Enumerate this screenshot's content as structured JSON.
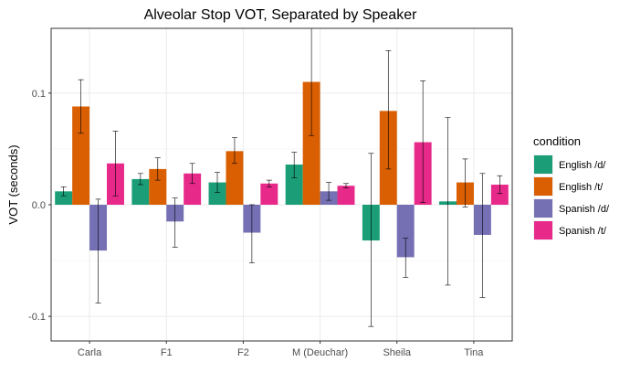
{
  "chart_data": {
    "type": "bar",
    "title": "Alveolar Stop VOT, Separated by Speaker",
    "xlabel": "",
    "ylabel": "VOT (seconds)",
    "ylim": [
      -0.122,
      0.158
    ],
    "yticks": [
      -0.1,
      0.0,
      0.1
    ],
    "ytick_labels": [
      "-0.1",
      "0.0",
      "0.1"
    ],
    "grid": true,
    "legend_title": "condition",
    "legend_position": "right",
    "categories": [
      "Carla",
      "F1",
      "F2",
      "M (Deuchar)",
      "Sheila",
      "Tina"
    ],
    "series": [
      {
        "name": "English /d/",
        "color": "#1B9E77",
        "values": [
          0.012,
          0.023,
          0.02,
          0.036,
          -0.032,
          0.003
        ],
        "err_low": [
          0.008,
          0.018,
          0.011,
          0.024,
          -0.109,
          -0.072
        ],
        "err_high": [
          0.016,
          0.028,
          0.029,
          0.047,
          0.046,
          0.078
        ]
      },
      {
        "name": "English /t/",
        "color": "#D95F02",
        "values": [
          0.088,
          0.032,
          0.048,
          0.11,
          0.084,
          0.02
        ],
        "err_low": [
          0.064,
          0.022,
          0.037,
          0.062,
          0.032,
          -0.002
        ],
        "err_high": [
          0.112,
          0.042,
          0.06,
          0.158,
          0.138,
          0.041
        ]
      },
      {
        "name": "Spanish /d/",
        "color": "#7570B3",
        "values": [
          -0.041,
          -0.015,
          -0.025,
          0.012,
          -0.047,
          -0.027
        ],
        "err_low": [
          -0.088,
          -0.038,
          -0.052,
          0.004,
          -0.065,
          -0.083
        ],
        "err_high": [
          0.005,
          0.006,
          0.0,
          0.02,
          -0.03,
          0.028
        ]
      },
      {
        "name": "Spanish /t/",
        "color": "#E7298A",
        "values": [
          0.037,
          0.028,
          0.019,
          0.017,
          0.056,
          0.018
        ],
        "err_low": [
          0.008,
          0.019,
          0.016,
          0.015,
          0.002,
          0.01
        ],
        "err_high": [
          0.066,
          0.037,
          0.022,
          0.019,
          0.111,
          0.026
        ]
      }
    ]
  }
}
